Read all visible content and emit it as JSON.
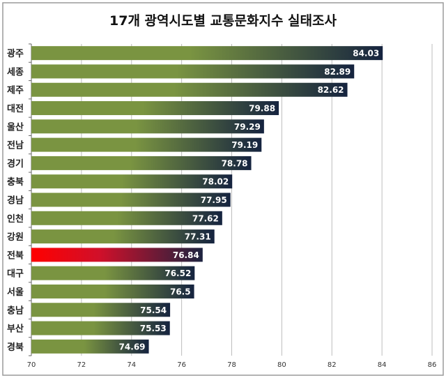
{
  "chart_data": {
    "type": "bar",
    "orientation": "horizontal",
    "title": "17개 광역시도별 교통문화지수 실태조사",
    "xlabel": "",
    "ylabel": "",
    "xlim": [
      70,
      86
    ],
    "xticks": [
      70,
      72,
      74,
      76,
      78,
      80,
      82,
      84,
      86
    ],
    "grid": "vertical",
    "categories": [
      "광주",
      "세종",
      "제주",
      "대전",
      "울산",
      "전남",
      "경기",
      "충북",
      "경남",
      "인천",
      "강원",
      "전북",
      "대구",
      "서울",
      "충남",
      "부산",
      "경북"
    ],
    "values": [
      84.03,
      82.89,
      82.62,
      79.88,
      79.29,
      79.19,
      78.78,
      78.02,
      77.95,
      77.62,
      77.31,
      76.84,
      76.52,
      76.5,
      75.54,
      75.53,
      74.69
    ],
    "value_labels": [
      "84.03",
      "82.89",
      "82.62",
      "79.88",
      "79.29",
      "79.19",
      "78.78",
      "78.02",
      "77.95",
      "77.62",
      "77.31",
      "76.84",
      "76.52",
      "76.5",
      "75.54",
      "75.53",
      "74.69"
    ],
    "highlight": "전북",
    "colors": {
      "bar_start": "#7a9441",
      "bar_end": "#15233f",
      "highlight_start": "#ff0000",
      "highlight_end": "#1c2340",
      "grid": "#bdbdbd",
      "border": "#9a9a9a"
    }
  }
}
